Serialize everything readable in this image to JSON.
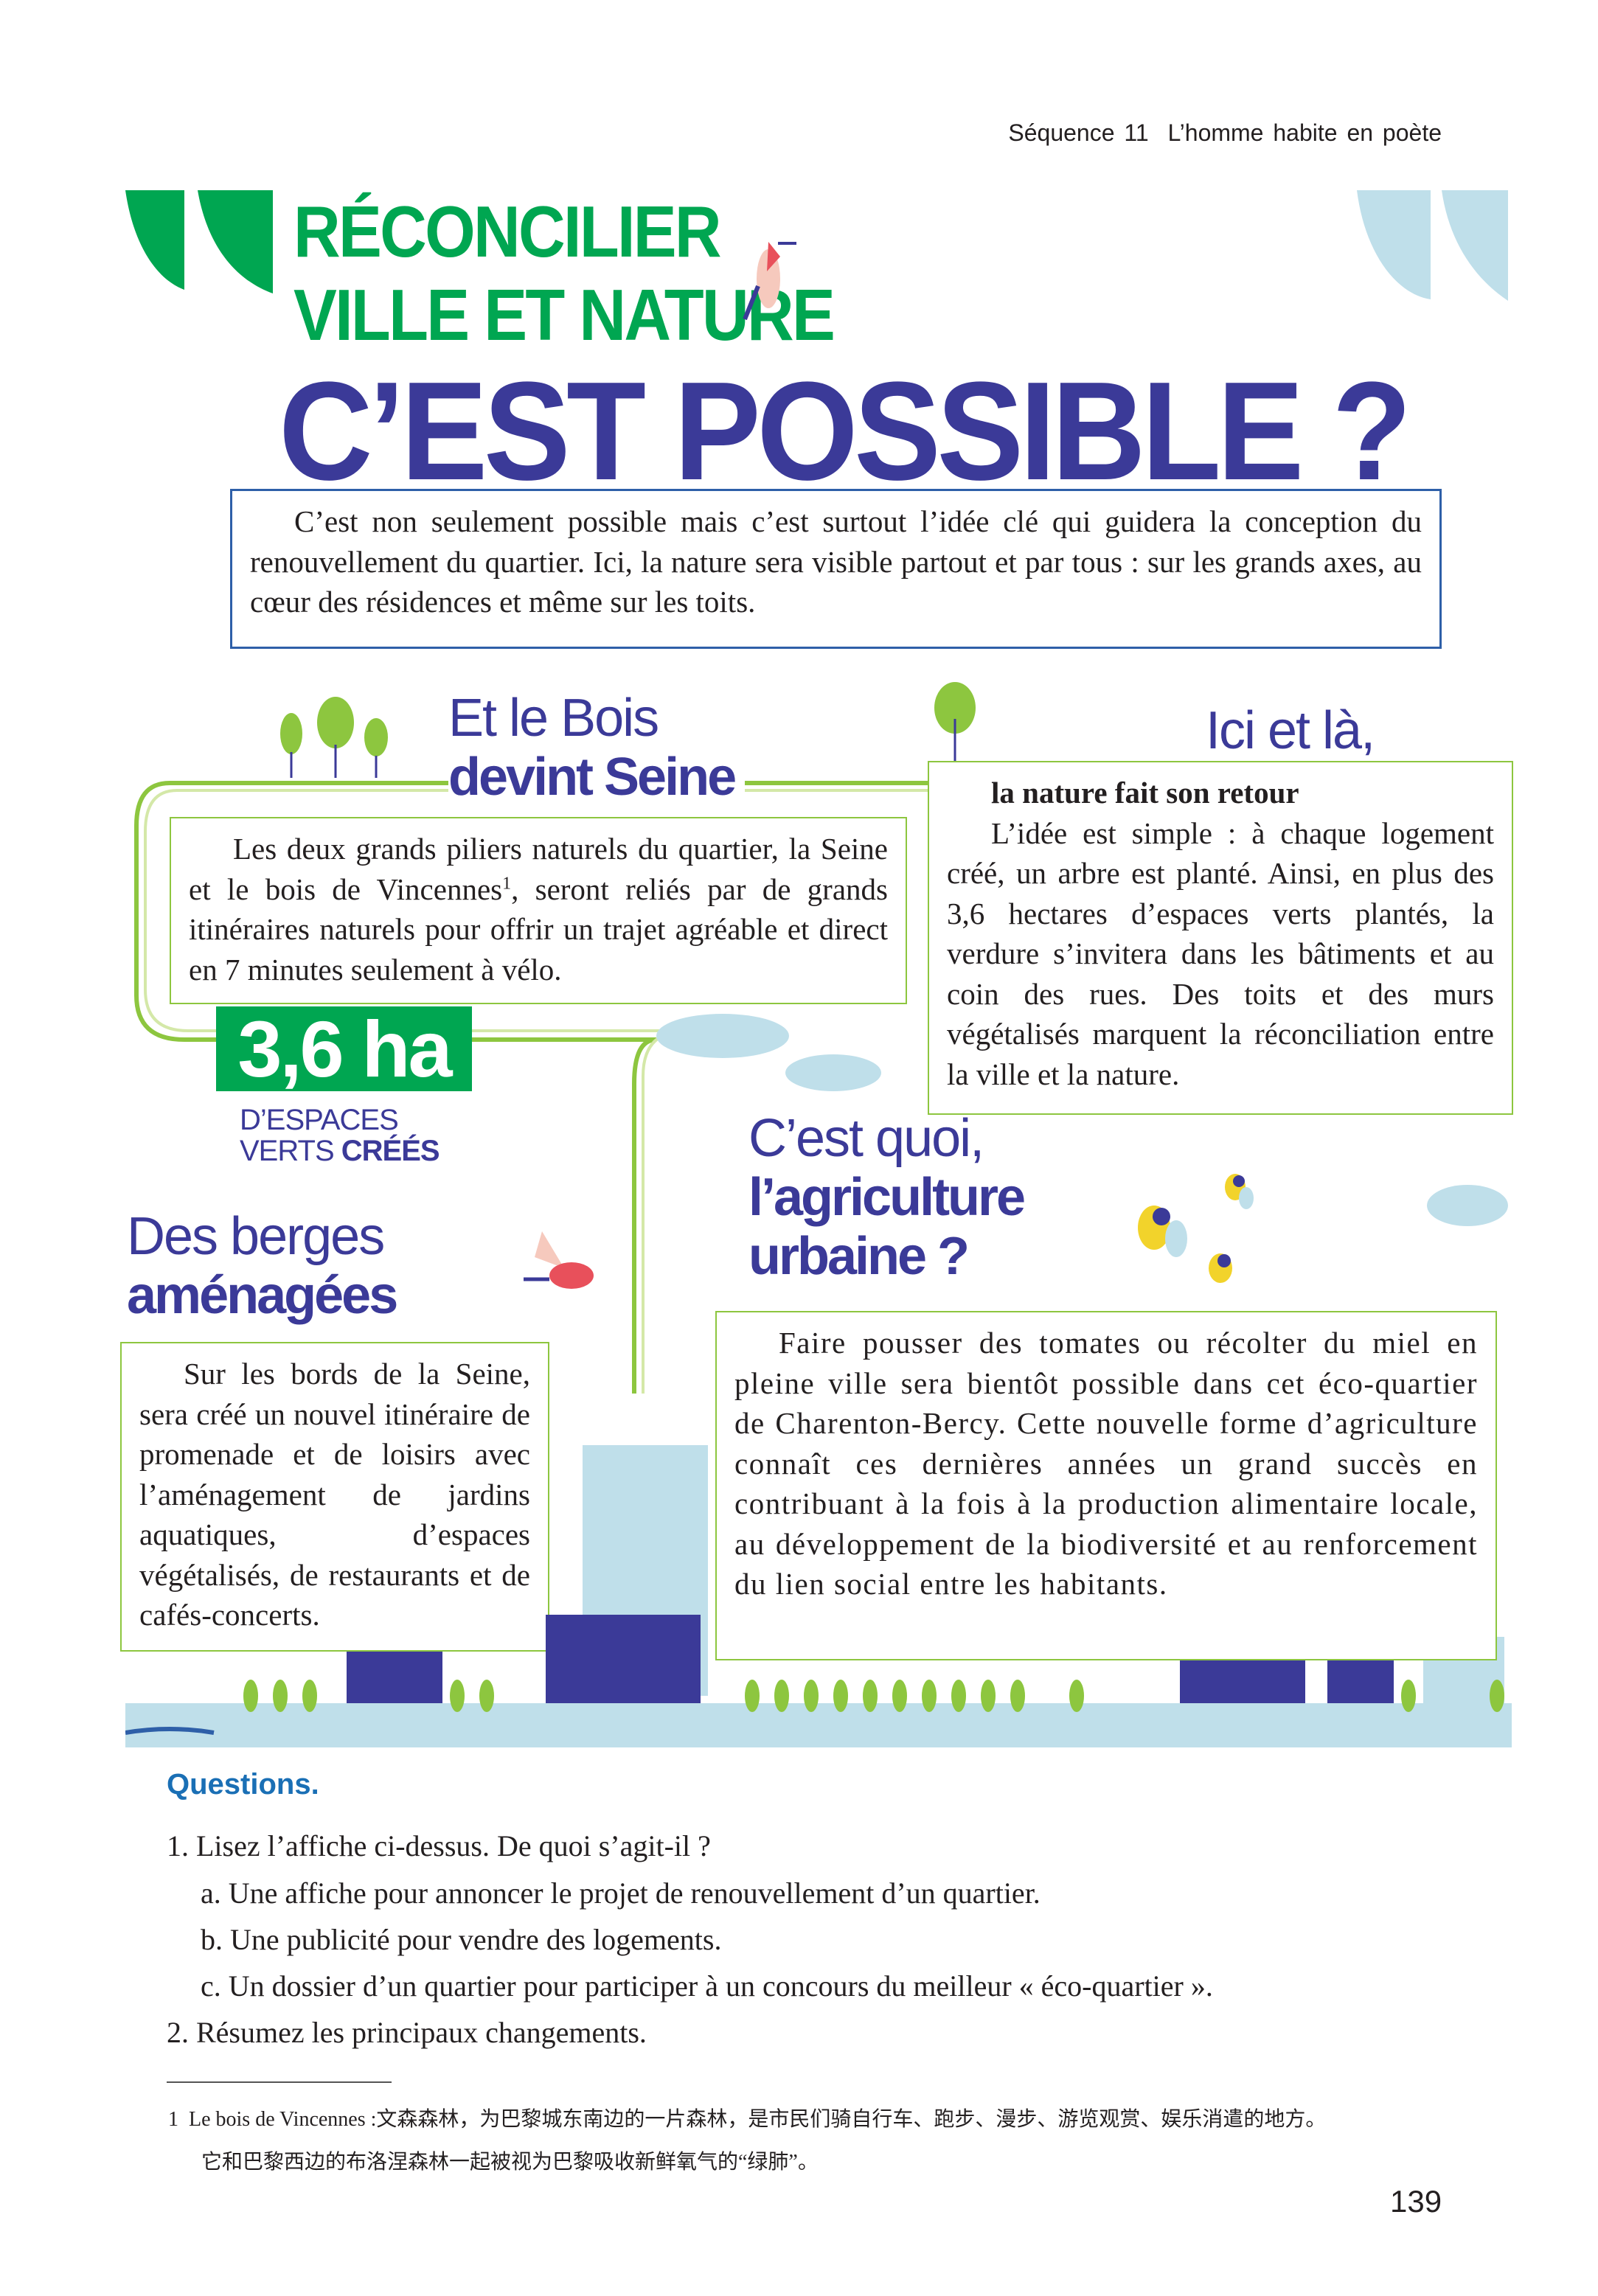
{
  "header": {
    "sequence": "Séquence 11",
    "title": "L’homme habite en poète"
  },
  "poster": {
    "title_line1": "RÉCONCILIER",
    "title_line2": "VILLE ET NATURE",
    "title_big": "C’EST POSSIBLE ?",
    "intro": "C’est non seulement possible mais c’est surtout l’idée clé qui guidera la conception du renouvellement du quartier. Ici, la nature sera visible partout et par tous : sur les grands axes, au cœur des résidences et même sur les toits.",
    "bois": {
      "heading_light": "Et le Bois",
      "heading_bold": "devint Seine",
      "text_before": "Les deux grands piliers naturels du quartier, la Seine et le bois de Vincennes",
      "footnote_ref": "1",
      "text_after": ", seront reliés par de grands itinéraires naturels pour offrir un trajet agréable et direct en 7 minutes seulement à vélo."
    },
    "stat": {
      "value": "3,6 ha",
      "label_line1": "D’ESPACES",
      "label_line2_light": "VERTS ",
      "label_line2_bold": "CRÉÉS"
    },
    "ici": {
      "heading": "Ici et là,",
      "subheading": "la nature fait son retour",
      "text": "L’idée est simple : à chaque logement créé, un arbre est planté. Ainsi, en plus des 3,6 hectares d’espaces verts plantés, la verdure s’invitera dans les bâtiments et au coin des rues. Des toits et des murs végétalisés marquent la réconciliation entre la ville et la nature."
    },
    "agri": {
      "heading_light": "C’est quoi,",
      "heading_bold1": "l’agriculture",
      "heading_bold2": "urbaine ?",
      "text": "Faire pousser des tomates ou récolter du miel en pleine ville sera bientôt possible dans cet éco-quartier de Charenton-Bercy. Cette nouvelle forme d’agriculture connaît ces dernières années un grand succès en contribuant à la fois à la production alimentaire locale, au développement de la biodiversité et au renforcement du lien social entre les habitants."
    },
    "berges": {
      "heading_light": "Des berges",
      "heading_bold": "aménagées",
      "text": "Sur les bords de la Seine, sera créé un nouvel itinéraire de promenade et de loisirs avec l’aménagement de jardins aquatiques, d’espaces végétalisés, de restaurants et de cafés-concerts."
    },
    "colors": {
      "green": "#00a651",
      "light_green": "#8dc63f",
      "navy": "#3b3a98",
      "light_blue": "#bfdfea"
    }
  },
  "questions": {
    "title": "Questions.",
    "items": [
      {
        "num": "1.",
        "text": "Lisez l’affiche ci-dessus. De quoi s’agit-il ?"
      },
      {
        "num": "a.",
        "text": "Une affiche pour annoncer le projet de renouvellement d’un quartier."
      },
      {
        "num": "b.",
        "text": "Une publicité pour vendre des logements."
      },
      {
        "num": "c.",
        "text": "Un dossier d’un quartier pour participer à un concours du meilleur « éco-quartier »."
      },
      {
        "num": "2.",
        "text": "Résumez les principaux changements."
      }
    ]
  },
  "footnote": {
    "num": "1",
    "term": "Le bois de Vincennes :",
    "line1": "文森森林，为巴黎城东南边的一片森林，是市民们骑自行车、跑步、漫步、游览观赏、娱乐消遣的地方。",
    "line2": "它和巴黎西边的布洛涅森林一起被视为巴黎吸收新鲜氧气的“绿肺”。"
  },
  "page_number": "139"
}
